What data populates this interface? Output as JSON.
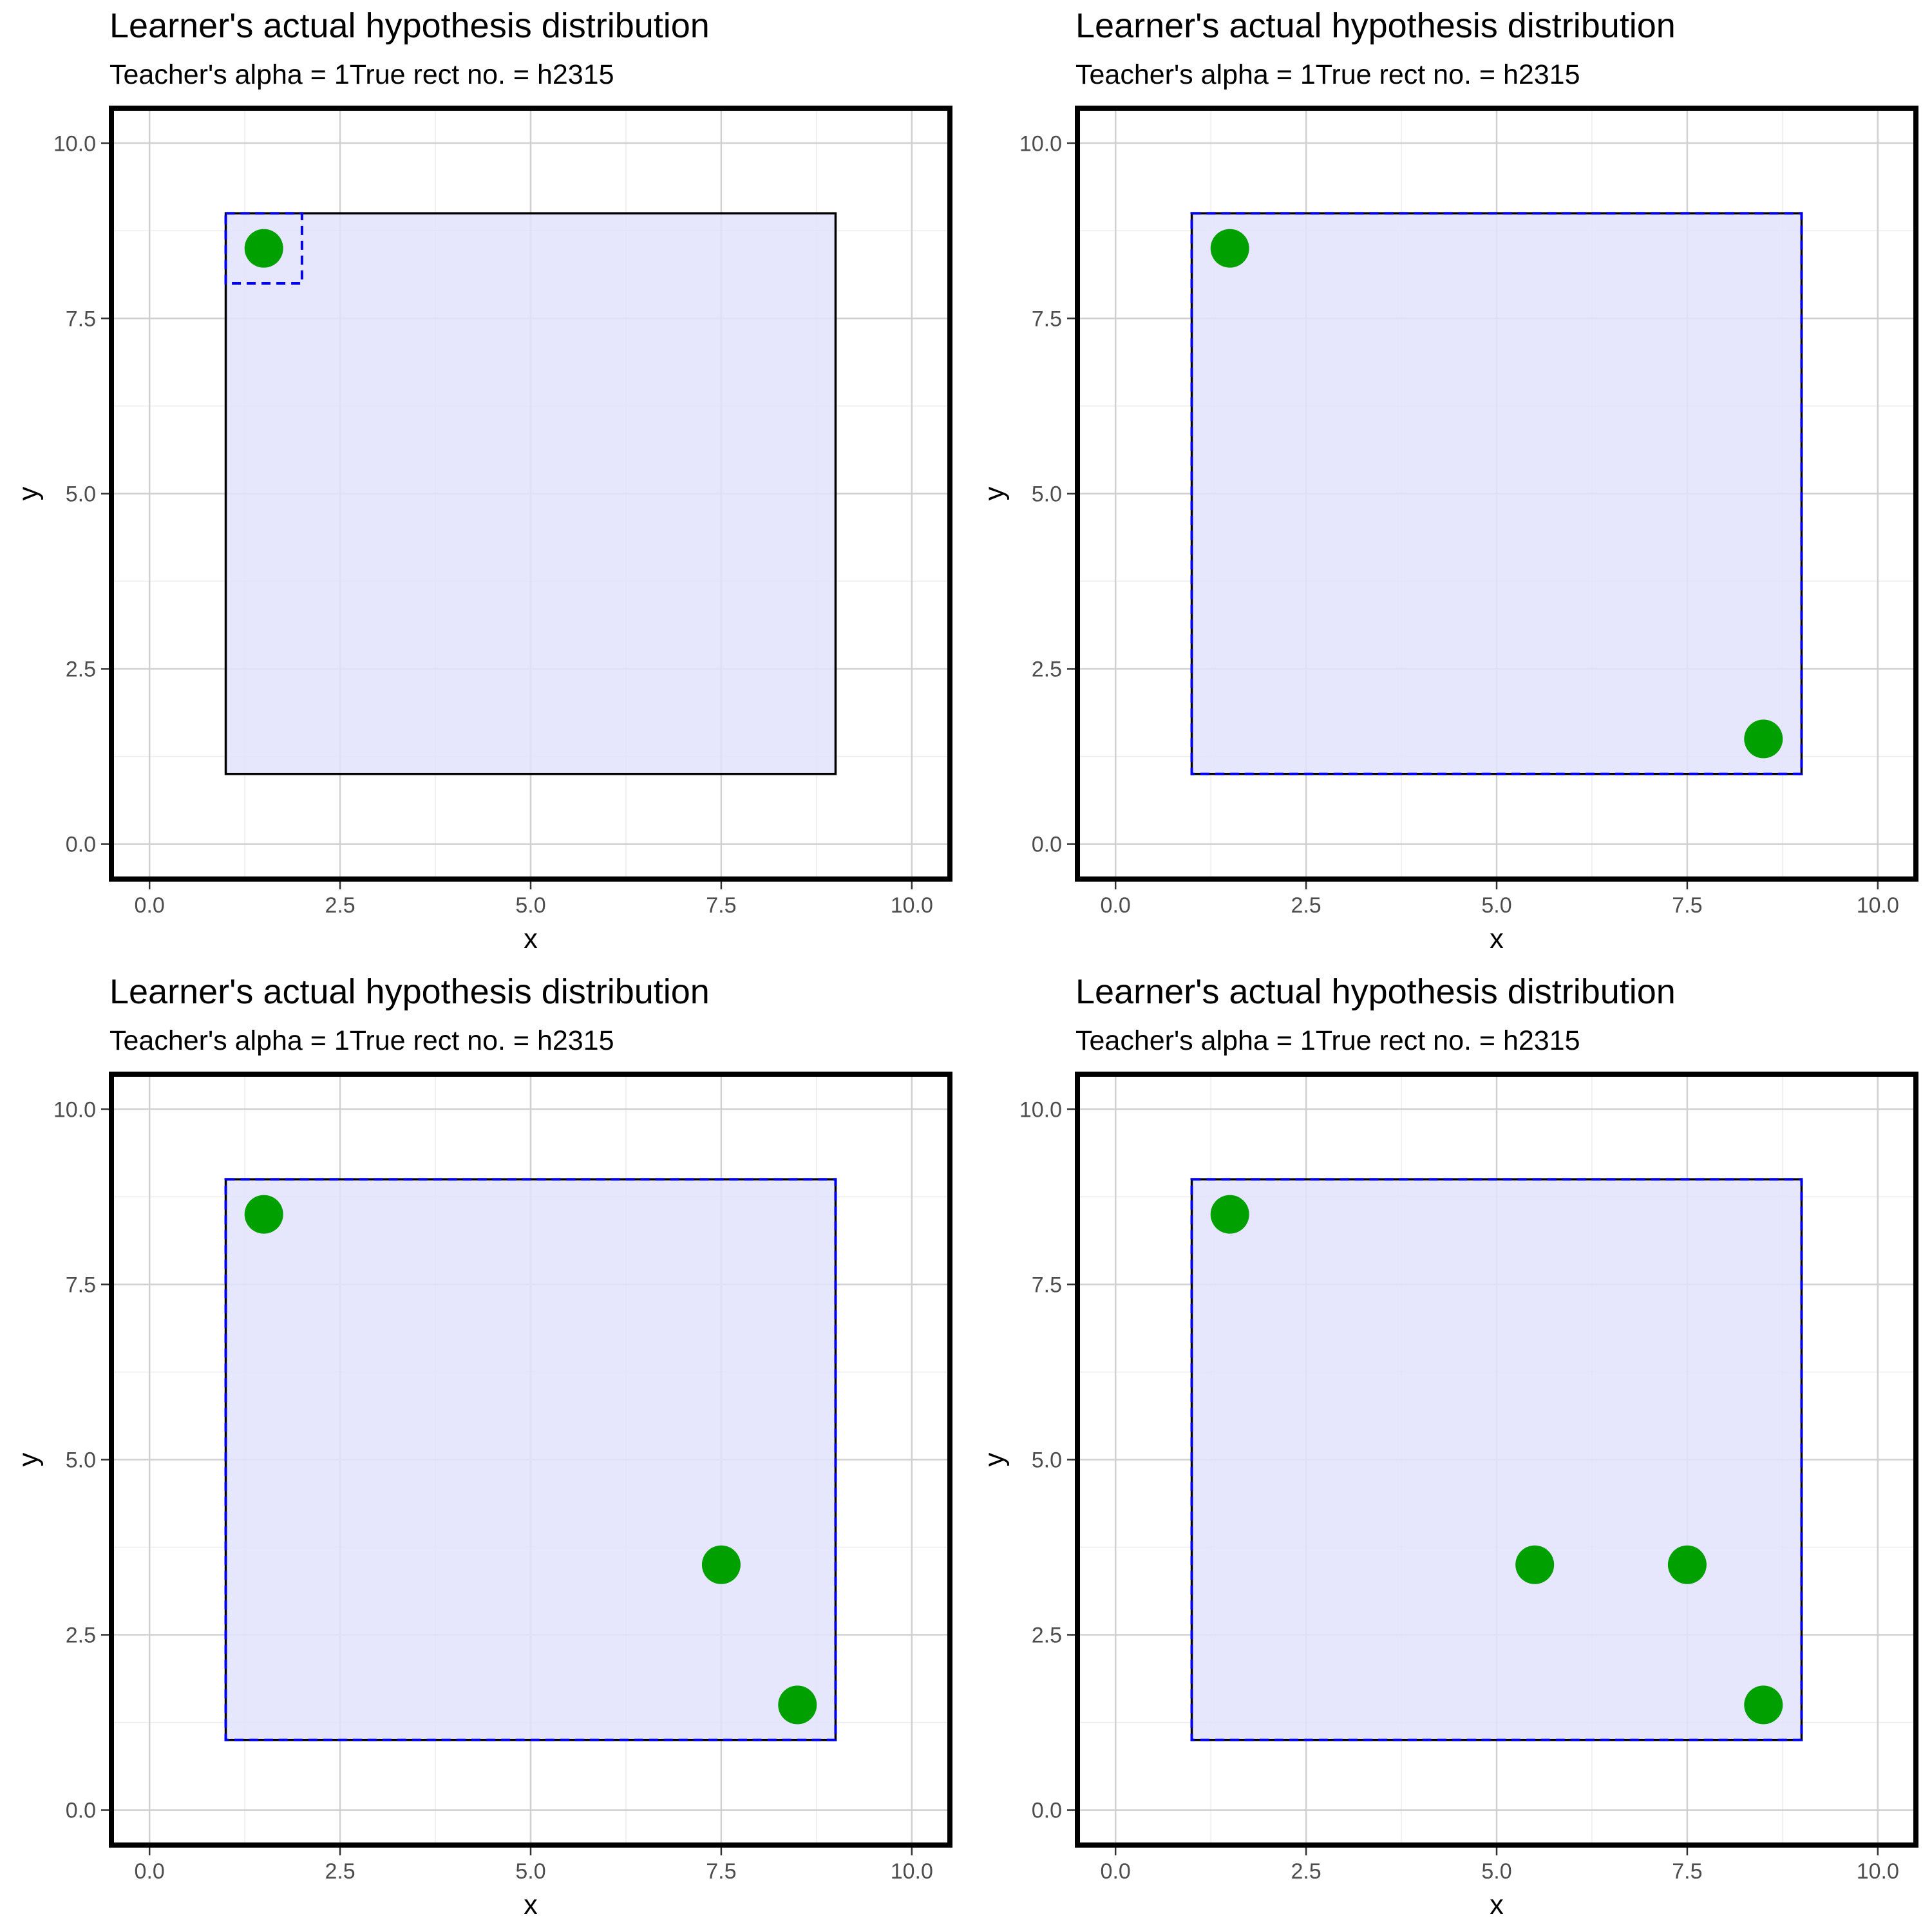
{
  "colors": {
    "background": "#ffffff",
    "panel_border": "#000000",
    "grid_major": "#d0d0d0",
    "grid_minor": "#ececec",
    "true_rect_fill": "#e2e3fb",
    "true_rect_stroke": "#000000",
    "hypothesis_stroke": "#0000ee",
    "point_fill": "#00a000"
  },
  "chart_data": [
    {
      "type": "scatter",
      "title": "Learner's actual hypothesis distribution",
      "subtitle": "Teacher's alpha = 1True rect no. = h2315",
      "xlabel": "x",
      "ylabel": "y",
      "xlim": [
        -0.5,
        10.5
      ],
      "ylim": [
        -0.5,
        10.5
      ],
      "x_ticks": [
        "0.0",
        "2.5",
        "5.0",
        "7.5",
        "10.0"
      ],
      "y_ticks": [
        "0.0",
        "2.5",
        "5.0",
        "7.5",
        "10.0"
      ],
      "grid": true,
      "true_rect": {
        "x_min": 1,
        "x_max": 9,
        "y_min": 1,
        "y_max": 9
      },
      "hypothesis_rects": [
        {
          "x_min": 1,
          "x_max": 2,
          "y_min": 8,
          "y_max": 9
        }
      ],
      "points": [
        {
          "x": 1.5,
          "y": 8.5
        }
      ]
    },
    {
      "type": "scatter",
      "title": "Learner's actual hypothesis distribution",
      "subtitle": "Teacher's alpha = 1True rect no. = h2315",
      "xlabel": "x",
      "ylabel": "y",
      "xlim": [
        -0.5,
        10.5
      ],
      "ylim": [
        -0.5,
        10.5
      ],
      "x_ticks": [
        "0.0",
        "2.5",
        "5.0",
        "7.5",
        "10.0"
      ],
      "y_ticks": [
        "0.0",
        "2.5",
        "5.0",
        "7.5",
        "10.0"
      ],
      "grid": true,
      "true_rect": {
        "x_min": 1,
        "x_max": 9,
        "y_min": 1,
        "y_max": 9
      },
      "hypothesis_rects": [
        {
          "x_min": 1,
          "x_max": 9,
          "y_min": 1,
          "y_max": 9
        }
      ],
      "points": [
        {
          "x": 1.5,
          "y": 8.5
        },
        {
          "x": 8.5,
          "y": 1.5
        }
      ]
    },
    {
      "type": "scatter",
      "title": "Learner's actual hypothesis distribution",
      "subtitle": "Teacher's alpha = 1True rect no. = h2315",
      "xlabel": "x",
      "ylabel": "y",
      "xlim": [
        -0.5,
        10.5
      ],
      "ylim": [
        -0.5,
        10.5
      ],
      "x_ticks": [
        "0.0",
        "2.5",
        "5.0",
        "7.5",
        "10.0"
      ],
      "y_ticks": [
        "0.0",
        "2.5",
        "5.0",
        "7.5",
        "10.0"
      ],
      "grid": true,
      "true_rect": {
        "x_min": 1,
        "x_max": 9,
        "y_min": 1,
        "y_max": 9
      },
      "hypothesis_rects": [
        {
          "x_min": 1,
          "x_max": 9,
          "y_min": 1,
          "y_max": 9
        }
      ],
      "points": [
        {
          "x": 1.5,
          "y": 8.5
        },
        {
          "x": 7.5,
          "y": 3.5
        },
        {
          "x": 8.5,
          "y": 1.5
        }
      ]
    },
    {
      "type": "scatter",
      "title": "Learner's actual hypothesis distribution",
      "subtitle": "Teacher's alpha = 1True rect no. = h2315",
      "xlabel": "x",
      "ylabel": "y",
      "xlim": [
        -0.5,
        10.5
      ],
      "ylim": [
        -0.5,
        10.5
      ],
      "x_ticks": [
        "0.0",
        "2.5",
        "5.0",
        "7.5",
        "10.0"
      ],
      "y_ticks": [
        "0.0",
        "2.5",
        "5.0",
        "7.5",
        "10.0"
      ],
      "grid": true,
      "true_rect": {
        "x_min": 1,
        "x_max": 9,
        "y_min": 1,
        "y_max": 9
      },
      "hypothesis_rects": [
        {
          "x_min": 1,
          "x_max": 9,
          "y_min": 1,
          "y_max": 9
        }
      ],
      "points": [
        {
          "x": 1.5,
          "y": 8.5
        },
        {
          "x": 5.5,
          "y": 3.5
        },
        {
          "x": 7.5,
          "y": 3.5
        },
        {
          "x": 8.5,
          "y": 1.5
        }
      ]
    }
  ]
}
